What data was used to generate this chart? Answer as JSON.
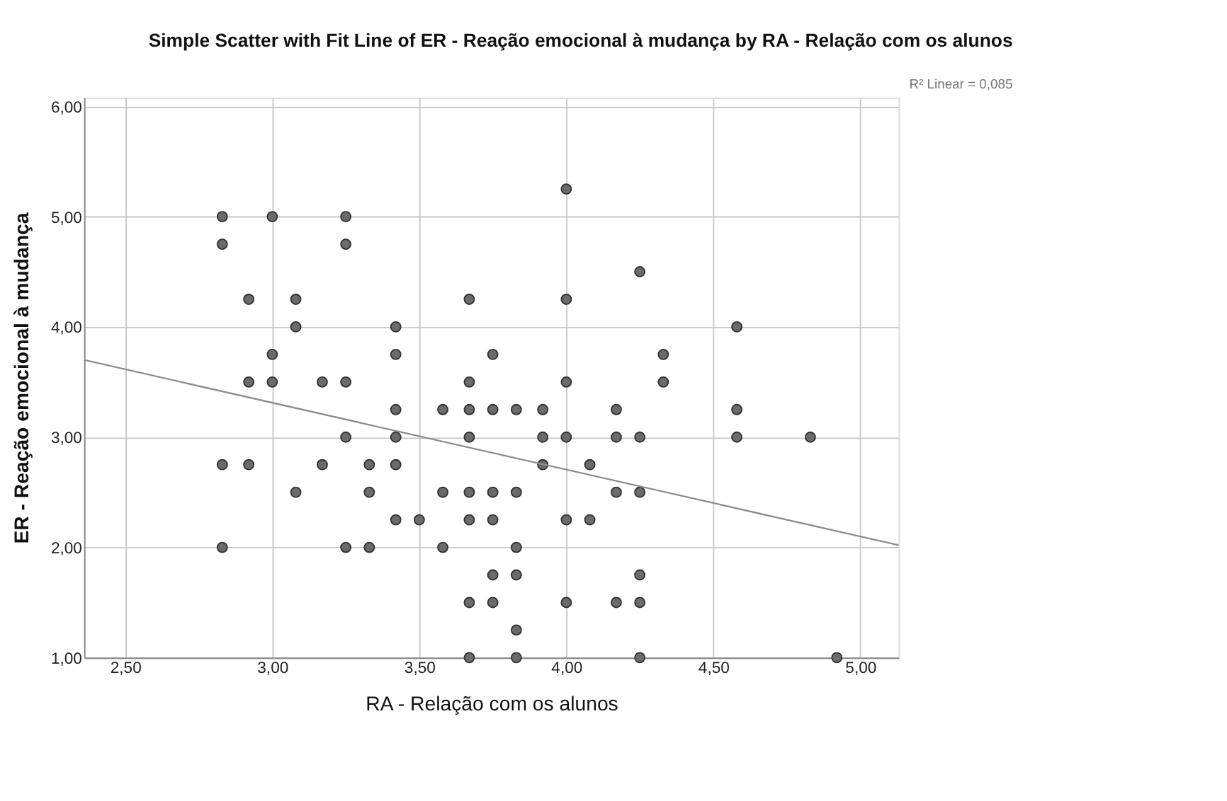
{
  "chart_data": {
    "type": "scatter",
    "title": "Simple Scatter with Fit Line of ER - Reação emocional à mudança by RA - Relação com os alunos",
    "xlabel": "RA - Relação com os alunos",
    "ylabel": "ER - Reação emocional à mudança",
    "annotations": [
      "R² Linear = 0,085"
    ],
    "xlim": [
      2.36,
      5.13
    ],
    "ylim": [
      1,
      6.08
    ],
    "xticks": [
      {
        "value": 2.5,
        "label": "2,50"
      },
      {
        "value": 3,
        "label": "3,00"
      },
      {
        "value": 3.5,
        "label": "3,50"
      },
      {
        "value": 4,
        "label": "4,00"
      },
      {
        "value": 4.5,
        "label": "4,50"
      },
      {
        "value": 5,
        "label": "5,00"
      }
    ],
    "yticks": [
      {
        "value": 1,
        "label": "1,00"
      },
      {
        "value": 2,
        "label": "2,00"
      },
      {
        "value": 3,
        "label": "3,00"
      },
      {
        "value": 4,
        "label": "4,00"
      },
      {
        "value": 5,
        "label": "5,00"
      },
      {
        "value": 6,
        "label": "6,00"
      }
    ],
    "grid": true,
    "marker": "circle",
    "series": [
      {
        "type": "scatter",
        "color": "#6b6b6b",
        "x": [
          2.83,
          2.83,
          2.83,
          2.83,
          2.92,
          2.92,
          2.92,
          3.0,
          3.0,
          3.0,
          3.08,
          3.08,
          3.08,
          3.17,
          3.17,
          3.25,
          3.25,
          3.25,
          3.25,
          3.25,
          3.33,
          3.33,
          3.33,
          3.42,
          3.42,
          3.42,
          3.42,
          3.42,
          3.42,
          3.5,
          3.58,
          3.58,
          3.58,
          3.67,
          3.67,
          3.67,
          3.67,
          3.67,
          3.67,
          3.67,
          3.67,
          3.75,
          3.75,
          3.75,
          3.75,
          3.75,
          3.75,
          3.83,
          3.83,
          3.83,
          3.83,
          3.83,
          3.83,
          3.92,
          3.92,
          3.92,
          4.0,
          4.0,
          4.0,
          4.0,
          4.0,
          4.0,
          4.08,
          4.08,
          4.17,
          4.17,
          4.17,
          4.17,
          4.25,
          4.25,
          4.25,
          4.25,
          4.25,
          4.25,
          4.33,
          4.33,
          4.58,
          4.58,
          4.58,
          4.83,
          4.92
        ],
        "values": [
          5.0,
          4.75,
          2.75,
          2.0,
          4.25,
          3.5,
          2.75,
          5.0,
          3.75,
          3.5,
          4.25,
          4.0,
          2.5,
          3.5,
          2.75,
          5.0,
          4.75,
          3.5,
          3.0,
          2.0,
          2.75,
          2.5,
          2.0,
          4.0,
          3.75,
          3.25,
          3.0,
          2.75,
          2.25,
          2.25,
          3.25,
          2.5,
          2.0,
          4.25,
          3.5,
          3.25,
          3.0,
          2.5,
          2.25,
          1.5,
          1.0,
          3.75,
          3.25,
          2.5,
          2.25,
          1.75,
          1.5,
          3.25,
          2.5,
          2.0,
          1.75,
          1.25,
          1.0,
          3.25,
          3.0,
          2.75,
          5.25,
          4.25,
          3.5,
          3.0,
          2.25,
          1.5,
          2.75,
          2.25,
          3.25,
          3.0,
          2.5,
          1.5,
          4.5,
          3.0,
          2.5,
          1.75,
          1.5,
          1.0,
          3.75,
          3.5,
          4.0,
          3.25,
          3.0,
          3.0,
          1.0
        ]
      },
      {
        "type": "line",
        "color": "#8c8c8c",
        "x": [
          2.36,
          5.13
        ],
        "values": [
          3.7,
          2.02
        ],
        "marker": "none",
        "line_style": "solid"
      }
    ]
  }
}
